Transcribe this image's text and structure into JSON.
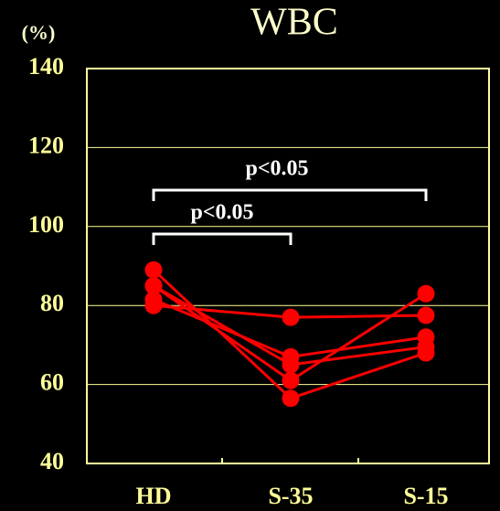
{
  "chart_data": {
    "type": "line",
    "title": "WBC",
    "y_unit_label": "(%)",
    "categories": [
      "HD",
      "S-35",
      "S-15"
    ],
    "series": [
      {
        "color": "#ff0000",
        "values": [
          80,
          77,
          77.5
        ]
      },
      {
        "color": "#ff0000",
        "values": [
          81.5,
          67,
          72
        ]
      },
      {
        "color": "#ff0000",
        "values": [
          85,
          61,
          83
        ]
      },
      {
        "color": "#ff0000",
        "values": [
          89,
          56.5,
          68
        ]
      },
      {
        "color": "#ff0000",
        "values": [
          85,
          65,
          69.5
        ]
      }
    ],
    "annotations": [
      "p<0.05",
      "p<0.05"
    ],
    "ylim": [
      40,
      140
    ],
    "yticks": [
      40,
      60,
      80,
      100,
      120,
      140
    ],
    "grid": true,
    "axis_color": "#ffff99"
  }
}
